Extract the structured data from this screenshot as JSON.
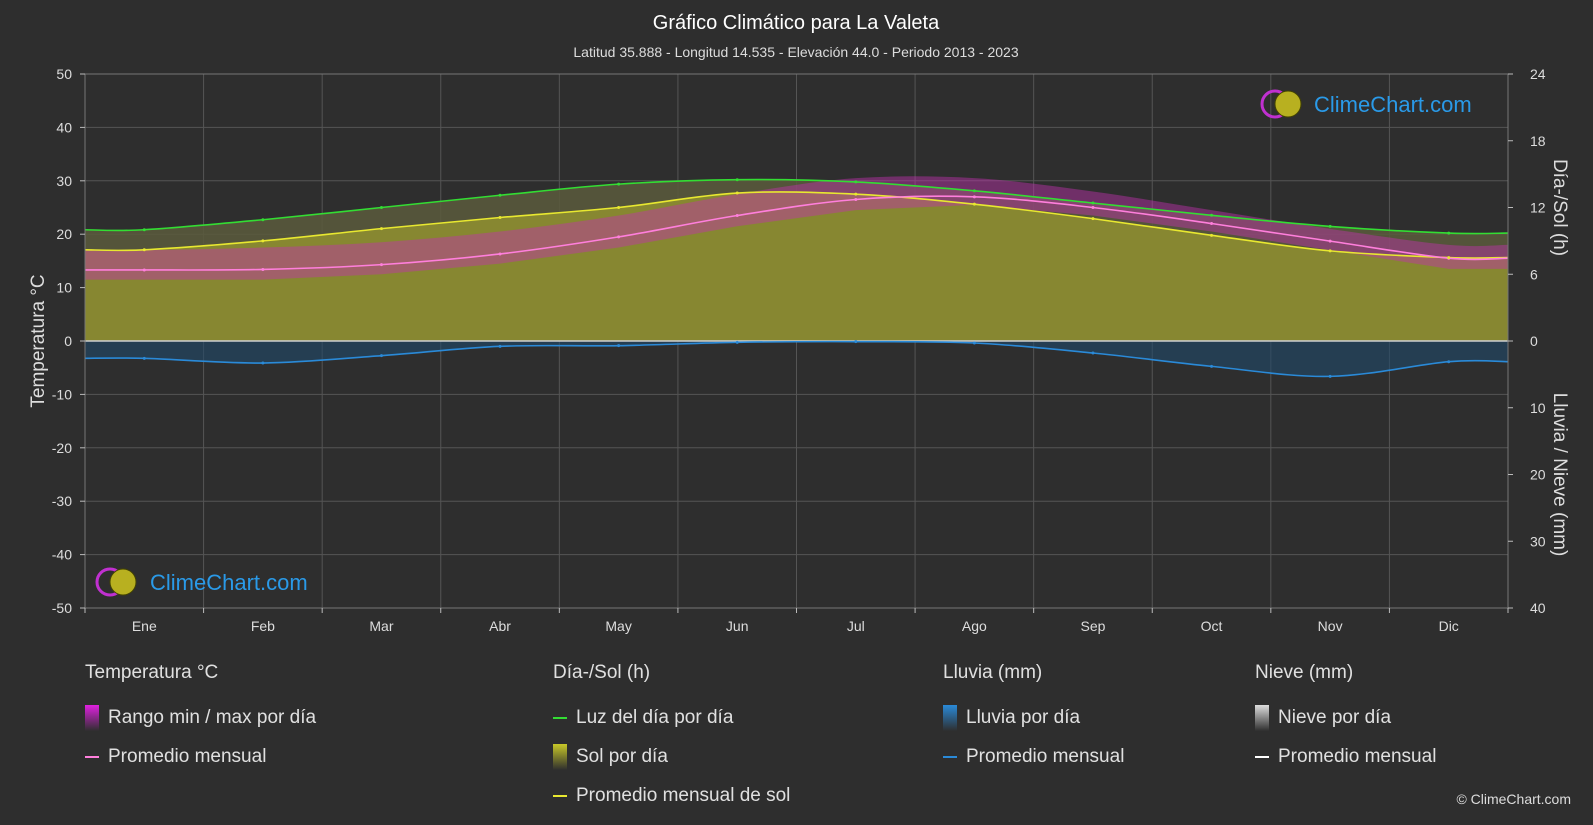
{
  "chart_data": {
    "type": "area",
    "title": "Gráfico Climático para La Valeta",
    "subtitle": "Latitud 35.888 - Longitud 14.535 - Elevación 44.0 - Periodo 2013 - 2023",
    "categories": [
      "Ene",
      "Feb",
      "Mar",
      "Abr",
      "May",
      "Jun",
      "Jul",
      "Ago",
      "Sep",
      "Oct",
      "Nov",
      "Dic"
    ],
    "y_left": {
      "label": "Temperatura °C",
      "range": [
        -50,
        50
      ],
      "ticks": [
        "50",
        "40",
        "30",
        "20",
        "10",
        "0",
        "-10",
        "-20",
        "-30",
        "-40",
        "-50"
      ]
    },
    "y_right_top": {
      "label": "Día-/Sol (h)",
      "range": [
        0,
        24
      ],
      "ticks": [
        "24",
        "18",
        "12",
        "6",
        "0"
      ]
    },
    "y_right_bottom": {
      "label": "Lluvia / Nieve (mm)",
      "range": [
        0,
        40
      ],
      "ticks": [
        "10",
        "20",
        "30",
        "40"
      ]
    },
    "series": [
      {
        "name": "Promedio mensual",
        "group": "Temperatura °C",
        "unit": "°C",
        "values": [
          13.3,
          13.4,
          14.3,
          16.3,
          19.5,
          23.5,
          26.5,
          27.0,
          25.0,
          22.0,
          18.7,
          15.5
        ]
      },
      {
        "name": "Luz del día por día",
        "group": "Día-/Sol (h)",
        "unit": "h",
        "values": [
          10.0,
          10.9,
          12.0,
          13.1,
          14.1,
          14.5,
          14.3,
          13.5,
          12.4,
          11.3,
          10.3,
          9.7
        ]
      },
      {
        "name": "Promedio mensual de sol",
        "group": "Día-/Sol (h)",
        "unit": "h",
        "values": [
          8.2,
          9.0,
          10.1,
          11.1,
          12.0,
          13.3,
          13.2,
          12.3,
          11.0,
          9.5,
          8.1,
          7.5
        ]
      },
      {
        "name": "Promedio mensual",
        "group": "Lluvia (mm)",
        "unit": "mm",
        "values": [
          2.6,
          3.3,
          2.2,
          0.8,
          0.7,
          0.2,
          0.1,
          0.3,
          1.8,
          3.8,
          5.3,
          3.1
        ]
      },
      {
        "name": "Promedio mensual",
        "group": "Nieve (mm)",
        "unit": "mm",
        "values": [
          0,
          0,
          0,
          0,
          0,
          0,
          0,
          0,
          0,
          0,
          0,
          0
        ]
      }
    ],
    "temp_range_band": {
      "name": "Rango min / max por día",
      "min": [
        11.5,
        11.5,
        12.5,
        14.5,
        17.5,
        21.5,
        24.5,
        25.5,
        23.5,
        20.5,
        17.0,
        13.5
      ],
      "max": [
        17.0,
        17.5,
        18.5,
        20.5,
        23.5,
        27.5,
        30.5,
        30.5,
        28.0,
        24.5,
        21.0,
        18.0
      ]
    },
    "grid": true,
    "legend_position": "bottom"
  },
  "watermark": "ClimeChart.com",
  "legend": {
    "groups": [
      {
        "title": "Temperatura °C",
        "items": [
          {
            "label": "Rango min / max por día",
            "kind": "box",
            "color": "#e020e0"
          },
          {
            "label": "Promedio mensual",
            "kind": "line",
            "color": "#ff7fdc"
          }
        ]
      },
      {
        "title": "Día-/Sol (h)",
        "items": [
          {
            "label": "Luz del día por día",
            "kind": "line",
            "color": "#33dd33"
          },
          {
            "label": "Sol por día",
            "kind": "box",
            "color": "#c8c828"
          },
          {
            "label": "Promedio mensual de sol",
            "kind": "line",
            "color": "#e8e830"
          }
        ]
      },
      {
        "title": "Lluvia (mm)",
        "items": [
          {
            "label": "Lluvia por día",
            "kind": "box",
            "color": "#2a8ad8"
          },
          {
            "label": "Promedio mensual",
            "kind": "line",
            "color": "#2a8ad8"
          }
        ]
      },
      {
        "title": "Nieve (mm)",
        "items": [
          {
            "label": "Nieve por día",
            "kind": "box",
            "color": "#dddddd"
          },
          {
            "label": "Promedio mensual",
            "kind": "line",
            "color": "#ffffff"
          }
        ]
      }
    ]
  },
  "copyright": "© ClimeChart.com"
}
